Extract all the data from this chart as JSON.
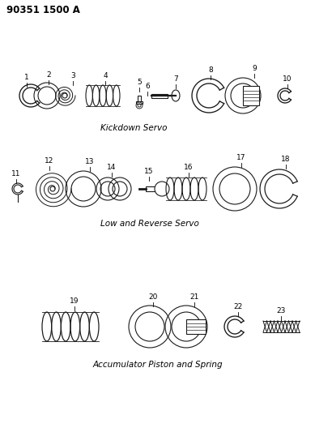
{
  "title_code": "90351 1500 A",
  "background_color": "#ffffff",
  "line_color": "#1a1a1a",
  "section1_label": "Kickdown Servo",
  "section2_label": "Low and Reverse Servo",
  "section3_label": "Accumulator Piston and Spring",
  "figsize": [
    3.89,
    5.33
  ],
  "dpi": 100
}
